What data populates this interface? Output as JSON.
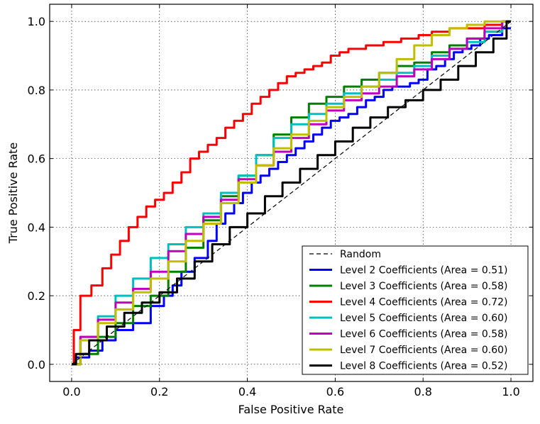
{
  "chart_data": {
    "type": "line",
    "title": "",
    "xlabel": "False Positive Rate",
    "ylabel": "True Positive Rate",
    "xlim": [
      -0.05,
      1.05
    ],
    "ylim": [
      -0.05,
      1.05
    ],
    "xticks": [
      0.0,
      0.2,
      0.4,
      0.6,
      0.8,
      1.0
    ],
    "yticks": [
      0.0,
      0.2,
      0.4,
      0.6,
      0.8,
      1.0
    ],
    "xtick_labels": [
      "0.0",
      "0.2",
      "0.4",
      "0.6",
      "0.8",
      "1.0"
    ],
    "ytick_labels": [
      "0.0",
      "0.2",
      "0.4",
      "0.6",
      "0.8",
      "1.0"
    ],
    "grid": true,
    "legend_position": "bottom-right",
    "series": [
      {
        "name": "Random",
        "color": "#000000",
        "style": "dashed",
        "x": [
          0,
          1
        ],
        "y": [
          0,
          1
        ]
      },
      {
        "name": "Level 2 Coefficients (Area = 0.51)",
        "color": "#0000ff",
        "style": "solid",
        "x": [
          0,
          0.02,
          0.06,
          0.08,
          0.12,
          0.16,
          0.2,
          0.22,
          0.24,
          0.26,
          0.3,
          0.32,
          0.34,
          0.36,
          0.38,
          0.4,
          0.42,
          0.44,
          0.46,
          0.48,
          0.5,
          0.52,
          0.54,
          0.56,
          0.58,
          0.6,
          0.62,
          0.64,
          0.66,
          0.68,
          0.7,
          0.72,
          0.74,
          0.76,
          0.78,
          0.8,
          0.82,
          0.84,
          0.86,
          0.88,
          0.9,
          0.92,
          0.94,
          0.96,
          1.0
        ],
        "y": [
          0,
          0.02,
          0.04,
          0.07,
          0.1,
          0.12,
          0.17,
          0.2,
          0.23,
          0.27,
          0.31,
          0.36,
          0.41,
          0.44,
          0.47,
          0.5,
          0.53,
          0.55,
          0.57,
          0.59,
          0.61,
          0.63,
          0.65,
          0.67,
          0.69,
          0.71,
          0.72,
          0.73,
          0.75,
          0.77,
          0.78,
          0.8,
          0.81,
          0.81,
          0.82,
          0.83,
          0.86,
          0.87,
          0.89,
          0.91,
          0.92,
          0.93,
          0.95,
          0.96,
          0.98
        ]
      },
      {
        "name": "Level 3 Coefficients (Area = 0.58)",
        "color": "#007f00",
        "style": "solid",
        "x": [
          0,
          0.04,
          0.08,
          0.12,
          0.16,
          0.2,
          0.24,
          0.28,
          0.32,
          0.36,
          0.4,
          0.44,
          0.48,
          0.52,
          0.56,
          0.6,
          0.64,
          0.68,
          0.72,
          0.76,
          0.8,
          0.84,
          0.88,
          0.92,
          0.96,
          1.0
        ],
        "y": [
          0,
          0.03,
          0.08,
          0.12,
          0.17,
          0.2,
          0.27,
          0.34,
          0.42,
          0.49,
          0.55,
          0.61,
          0.67,
          0.72,
          0.76,
          0.78,
          0.81,
          0.83,
          0.85,
          0.87,
          0.88,
          0.91,
          0.93,
          0.95,
          0.97,
          1.0
        ]
      },
      {
        "name": "Level 4 Coefficients (Area = 0.72)",
        "color": "#ff0000",
        "style": "solid",
        "x": [
          0,
          0.01,
          0.03,
          0.06,
          0.08,
          0.1,
          0.12,
          0.14,
          0.16,
          0.18,
          0.2,
          0.22,
          0.24,
          0.26,
          0.28,
          0.3,
          0.32,
          0.34,
          0.36,
          0.38,
          0.4,
          0.42,
          0.44,
          0.46,
          0.48,
          0.5,
          0.52,
          0.54,
          0.56,
          0.58,
          0.6,
          0.62,
          0.64,
          0.66,
          0.68,
          0.7,
          0.72,
          0.74,
          0.76,
          0.78,
          0.8,
          0.84,
          0.88,
          0.92,
          0.96,
          1.0
        ],
        "y": [
          0,
          0.1,
          0.2,
          0.23,
          0.28,
          0.32,
          0.36,
          0.4,
          0.43,
          0.46,
          0.48,
          0.5,
          0.53,
          0.56,
          0.6,
          0.62,
          0.64,
          0.66,
          0.69,
          0.71,
          0.73,
          0.76,
          0.78,
          0.8,
          0.82,
          0.84,
          0.85,
          0.86,
          0.87,
          0.88,
          0.9,
          0.91,
          0.92,
          0.92,
          0.93,
          0.93,
          0.94,
          0.94,
          0.95,
          0.95,
          0.96,
          0.97,
          0.98,
          0.98,
          0.99,
          1.0
        ]
      },
      {
        "name": "Level 5 Coefficients (Area = 0.60)",
        "color": "#00bfbf",
        "style": "solid",
        "x": [
          0,
          0.04,
          0.08,
          0.12,
          0.16,
          0.2,
          0.24,
          0.28,
          0.32,
          0.36,
          0.4,
          0.44,
          0.48,
          0.52,
          0.56,
          0.6,
          0.64,
          0.68,
          0.72,
          0.76,
          0.8,
          0.84,
          0.88,
          0.92,
          0.96,
          1.0
        ],
        "y": [
          0,
          0.08,
          0.14,
          0.2,
          0.25,
          0.31,
          0.35,
          0.4,
          0.44,
          0.5,
          0.55,
          0.61,
          0.66,
          0.7,
          0.73,
          0.76,
          0.79,
          0.81,
          0.83,
          0.85,
          0.87,
          0.9,
          0.92,
          0.94,
          0.97,
          1.0
        ]
      },
      {
        "name": "Level 6 Coefficients (Area = 0.58)",
        "color": "#bf00bf",
        "style": "solid",
        "x": [
          0,
          0.04,
          0.08,
          0.12,
          0.16,
          0.2,
          0.24,
          0.28,
          0.32,
          0.36,
          0.4,
          0.44,
          0.48,
          0.52,
          0.56,
          0.6,
          0.64,
          0.68,
          0.72,
          0.76,
          0.8,
          0.84,
          0.88,
          0.92,
          0.96,
          1.0
        ],
        "y": [
          0,
          0.08,
          0.13,
          0.18,
          0.22,
          0.27,
          0.33,
          0.38,
          0.43,
          0.48,
          0.54,
          0.58,
          0.62,
          0.66,
          0.7,
          0.74,
          0.77,
          0.79,
          0.81,
          0.84,
          0.86,
          0.89,
          0.92,
          0.95,
          0.98,
          1.0
        ]
      },
      {
        "name": "Level 7 Coefficients (Area = 0.60)",
        "color": "#bfbf00",
        "style": "solid",
        "x": [
          0,
          0.04,
          0.08,
          0.12,
          0.16,
          0.2,
          0.24,
          0.28,
          0.32,
          0.36,
          0.4,
          0.44,
          0.48,
          0.52,
          0.56,
          0.6,
          0.64,
          0.68,
          0.72,
          0.76,
          0.8,
          0.84,
          0.88,
          0.92,
          0.96,
          1.0
        ],
        "y": [
          0,
          0.07,
          0.12,
          0.16,
          0.21,
          0.25,
          0.3,
          0.36,
          0.41,
          0.47,
          0.53,
          0.58,
          0.63,
          0.67,
          0.71,
          0.75,
          0.78,
          0.81,
          0.85,
          0.89,
          0.93,
          0.96,
          0.98,
          0.99,
          1.0,
          1.0
        ]
      },
      {
        "name": "Level 8 Coefficients (Area = 0.52)",
        "color": "#000000",
        "style": "solid",
        "x": [
          0,
          0.02,
          0.06,
          0.1,
          0.14,
          0.18,
          0.22,
          0.26,
          0.3,
          0.34,
          0.38,
          0.42,
          0.46,
          0.5,
          0.54,
          0.58,
          0.62,
          0.66,
          0.7,
          0.74,
          0.78,
          0.82,
          0.86,
          0.9,
          0.94,
          0.98,
          1.0
        ],
        "y": [
          0,
          0.03,
          0.07,
          0.11,
          0.15,
          0.18,
          0.21,
          0.25,
          0.3,
          0.35,
          0.4,
          0.44,
          0.49,
          0.53,
          0.57,
          0.61,
          0.65,
          0.69,
          0.72,
          0.75,
          0.77,
          0.8,
          0.83,
          0.87,
          0.91,
          0.95,
          1.0
        ]
      }
    ]
  }
}
